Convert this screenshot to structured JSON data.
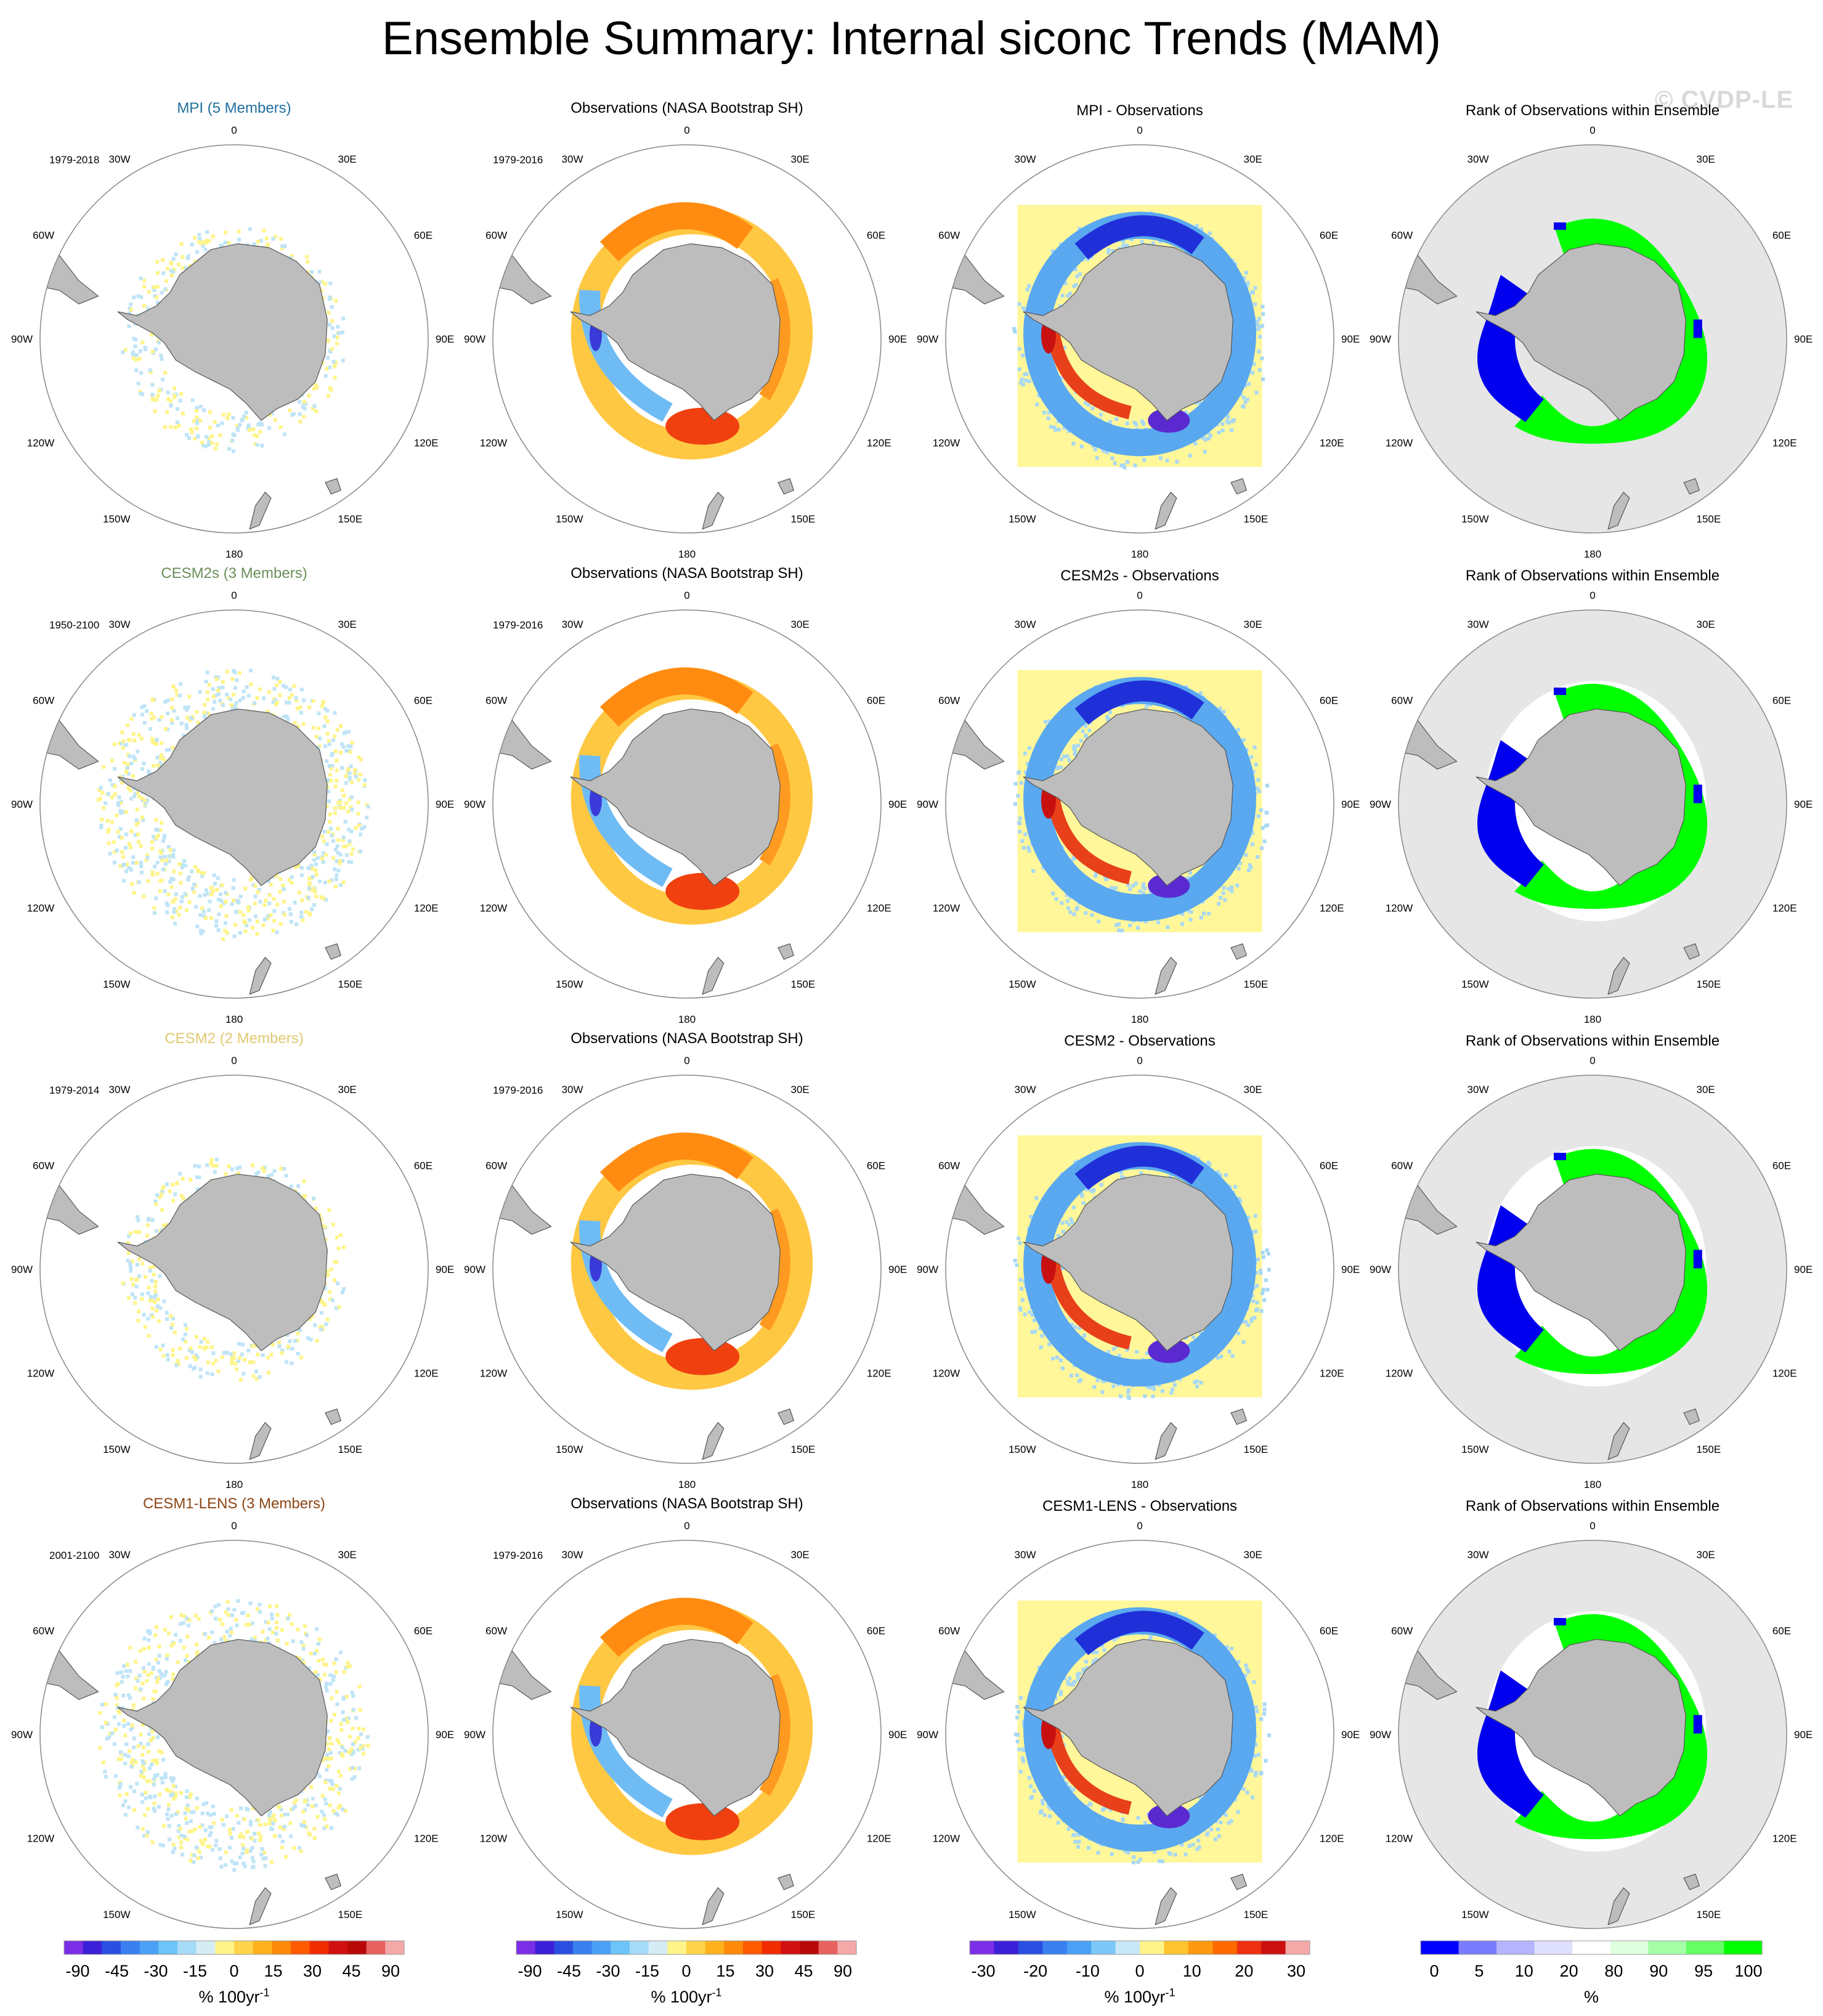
{
  "title": "Ensemble Summary: Internal siconc Trends (MAM)",
  "watermark": "© CVDP-LE",
  "lon_labels": [
    "0",
    "30E",
    "60E",
    "90E",
    "120E",
    "150E",
    "180",
    "150W",
    "120W",
    "90W",
    "60W",
    "30W"
  ],
  "colors": {
    "land": "#bdbdbd",
    "rank_bg": "#e6e6e6",
    "diff_bg": "#fff799",
    "green": "#00ff00",
    "blue": "#0000ee"
  },
  "rows": [
    {
      "model": "MPI (5 Members)",
      "model_color": "#1f6f9f",
      "period": "1979-2018",
      "obs_title": "Observations (NASA Bootstrap SH)",
      "obs_period": "1979-2016",
      "diff_title": "MPI - Observations",
      "rank_title": "Rank of Observations within Ensemble"
    },
    {
      "model": "CESM2s (3 Members)",
      "model_color": "#6b8f5a",
      "period": "1950-2100",
      "obs_title": "Observations (NASA Bootstrap SH)",
      "obs_period": "1979-2016",
      "diff_title": "CESM2s - Observations",
      "rank_title": "Rank of Observations within Ensemble"
    },
    {
      "model": "CESM2 (2 Members)",
      "model_color": "#e0c870",
      "period": "1979-2014",
      "obs_title": "Observations (NASA Bootstrap SH)",
      "obs_period": "1979-2016",
      "diff_title": "CESM2 - Observations",
      "rank_title": "Rank of Observations within Ensemble"
    },
    {
      "model": "CESM1-LENS (3 Members)",
      "model_color": "#8b4513",
      "period": "2001-2100",
      "obs_title": "Observations (NASA Bootstrap SH)",
      "obs_period": "1979-2016",
      "diff_title": "CESM1-LENS - Observations",
      "rank_title": "Rank of Observations within Ensemble"
    }
  ],
  "colorbars": [
    {
      "labels": [
        "-90",
        "-45",
        "-30",
        "-15",
        "0",
        "15",
        "30",
        "45",
        "90"
      ],
      "unit": "% 100yr",
      "unit_sup": "-1",
      "colors": [
        "#7a2ee6",
        "#3c1fd8",
        "#2a4fe0",
        "#3a7ff0",
        "#4aa0f5",
        "#6cc4f8",
        "#a6dbf8",
        "#d6ecf5",
        "#fff48a",
        "#ffd34a",
        "#ffb21e",
        "#ff8a0a",
        "#ff5a00",
        "#f02c00",
        "#d01010",
        "#b80808",
        "#e86060",
        "#f5a8a8"
      ]
    },
    {
      "labels": [
        "-90",
        "-45",
        "-30",
        "-15",
        "0",
        "15",
        "30",
        "45",
        "90"
      ],
      "unit": "% 100yr",
      "unit_sup": "-1",
      "colors": [
        "#7a2ee6",
        "#3c1fd8",
        "#2a4fe0",
        "#3a7ff0",
        "#4aa0f5",
        "#6cc4f8",
        "#a6dbf8",
        "#d6ecf5",
        "#fff48a",
        "#ffd34a",
        "#ffb21e",
        "#ff8a0a",
        "#ff5a00",
        "#f02c00",
        "#d01010",
        "#b80808",
        "#e86060",
        "#f5a8a8"
      ]
    },
    {
      "labels": [
        "-30",
        "-20",
        "-10",
        "0",
        "10",
        "20",
        "30"
      ],
      "unit": "% 100yr",
      "unit_sup": "-1",
      "colors": [
        "#7a2ee6",
        "#3c1fd8",
        "#2a4fe0",
        "#3a7ff0",
        "#4aa0f5",
        "#7cc8f8",
        "#c8e8f8",
        "#fff48a",
        "#ffc430",
        "#ff9a10",
        "#ff6a00",
        "#ee3010",
        "#cc1010",
        "#f5a8a8"
      ]
    },
    {
      "labels": [
        "0",
        "5",
        "10",
        "20",
        "80",
        "90",
        "95",
        "100"
      ],
      "unit": "%",
      "unit_sup": "",
      "colors": [
        "#0000ff",
        "#7b7bff",
        "#b5b5ff",
        "#e0e0ff",
        "#ffffff",
        "#e0ffe0",
        "#a6ffa6",
        "#66ff66",
        "#00ff00"
      ]
    }
  ]
}
